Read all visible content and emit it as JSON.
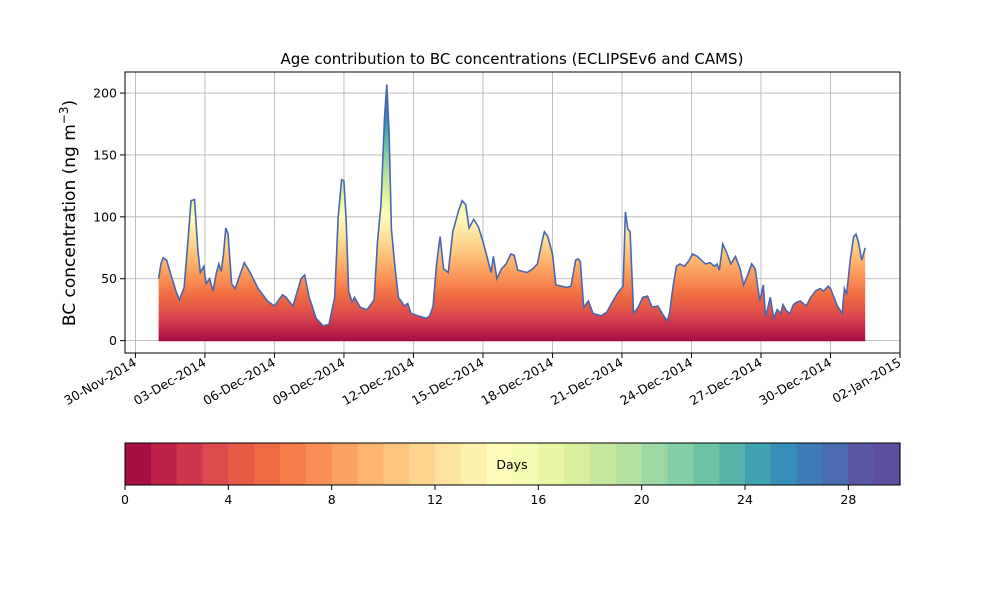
{
  "chart_data": {
    "type": "area",
    "title": "Age contribution to BC concentrations (ECLIPSEv6 and CAMS)",
    "ylabel": "BC concentration (ng m",
    "ylabel_exponent": "−3",
    "ylabel_close": ")",
    "xlabel": "",
    "xlim_days_from_nov30": [
      -0.45,
      33.0
    ],
    "ylim": [
      -10,
      217
    ],
    "yticks": [
      0,
      50,
      100,
      150,
      200
    ],
    "xticks": [
      {
        "day": 0,
        "label": "30-Nov-2014"
      },
      {
        "day": 3,
        "label": "03-Dec-2014"
      },
      {
        "day": 6,
        "label": "06-Dec-2014"
      },
      {
        "day": 9,
        "label": "09-Dec-2014"
      },
      {
        "day": 12,
        "label": "12-Dec-2014"
      },
      {
        "day": 15,
        "label": "15-Dec-2014"
      },
      {
        "day": 18,
        "label": "18-Dec-2014"
      },
      {
        "day": 21,
        "label": "21-Dec-2014"
      },
      {
        "day": 24,
        "label": "24-Dec-2014"
      },
      {
        "day": 27,
        "label": "27-Dec-2014"
      },
      {
        "day": 30,
        "label": "30-Dec-2014"
      },
      {
        "day": 33,
        "label": "02-Jan-2015"
      }
    ],
    "grid": true,
    "series_note": "stacked contributions by age (days 0-30)",
    "total_concentration": [
      [
        1.0,
        50
      ],
      [
        1.1,
        62
      ],
      [
        1.2,
        67
      ],
      [
        1.35,
        65
      ],
      [
        1.5,
        55
      ],
      [
        1.75,
        40
      ],
      [
        1.9,
        33
      ],
      [
        2.1,
        43
      ],
      [
        2.3,
        88
      ],
      [
        2.4,
        113
      ],
      [
        2.55,
        114
      ],
      [
        2.7,
        72
      ],
      [
        2.8,
        55
      ],
      [
        2.95,
        60
      ],
      [
        3.05,
        46
      ],
      [
        3.2,
        50
      ],
      [
        3.35,
        40
      ],
      [
        3.5,
        55
      ],
      [
        3.6,
        62
      ],
      [
        3.7,
        56
      ],
      [
        3.8,
        70
      ],
      [
        3.9,
        91
      ],
      [
        4.0,
        86
      ],
      [
        4.15,
        46
      ],
      [
        4.3,
        42
      ],
      [
        4.55,
        55
      ],
      [
        4.7,
        63
      ],
      [
        4.95,
        55
      ],
      [
        5.3,
        42
      ],
      [
        5.7,
        32
      ],
      [
        6.0,
        28
      ],
      [
        6.35,
        37
      ],
      [
        6.5,
        35
      ],
      [
        6.8,
        28
      ],
      [
        7.15,
        50
      ],
      [
        7.3,
        53
      ],
      [
        7.5,
        35
      ],
      [
        7.8,
        18
      ],
      [
        8.1,
        12
      ],
      [
        8.35,
        13
      ],
      [
        8.6,
        35
      ],
      [
        8.75,
        100
      ],
      [
        8.9,
        130
      ],
      [
        9.0,
        129
      ],
      [
        9.1,
        95
      ],
      [
        9.2,
        40
      ],
      [
        9.35,
        31
      ],
      [
        9.45,
        35
      ],
      [
        9.7,
        27
      ],
      [
        10.0,
        25
      ],
      [
        10.3,
        33
      ],
      [
        10.45,
        80
      ],
      [
        10.6,
        110
      ],
      [
        10.75,
        180
      ],
      [
        10.85,
        207
      ],
      [
        10.95,
        168
      ],
      [
        11.05,
        90
      ],
      [
        11.2,
        60
      ],
      [
        11.35,
        35
      ],
      [
        11.5,
        31
      ],
      [
        11.6,
        28
      ],
      [
        11.75,
        30
      ],
      [
        11.9,
        22
      ],
      [
        12.2,
        20
      ],
      [
        12.55,
        18
      ],
      [
        12.7,
        20
      ],
      [
        12.85,
        28
      ],
      [
        13.0,
        62
      ],
      [
        13.15,
        84
      ],
      [
        13.3,
        58
      ],
      [
        13.5,
        55
      ],
      [
        13.7,
        88
      ],
      [
        13.95,
        105
      ],
      [
        14.1,
        113
      ],
      [
        14.25,
        110
      ],
      [
        14.4,
        91
      ],
      [
        14.6,
        98
      ],
      [
        14.8,
        92
      ],
      [
        15.0,
        80
      ],
      [
        15.2,
        66
      ],
      [
        15.35,
        55
      ],
      [
        15.45,
        68
      ],
      [
        15.6,
        50
      ],
      [
        15.8,
        58
      ],
      [
        16.0,
        62
      ],
      [
        16.2,
        70
      ],
      [
        16.35,
        69
      ],
      [
        16.5,
        57
      ],
      [
        16.9,
        55
      ],
      [
        17.15,
        58
      ],
      [
        17.35,
        62
      ],
      [
        17.55,
        80
      ],
      [
        17.65,
        88
      ],
      [
        17.8,
        84
      ],
      [
        18.0,
        70
      ],
      [
        18.15,
        45
      ],
      [
        18.6,
        43
      ],
      [
        18.8,
        44
      ],
      [
        19.0,
        65
      ],
      [
        19.1,
        66
      ],
      [
        19.2,
        64
      ],
      [
        19.35,
        27
      ],
      [
        19.55,
        32
      ],
      [
        19.75,
        22
      ],
      [
        20.1,
        20
      ],
      [
        20.35,
        23
      ],
      [
        20.55,
        30
      ],
      [
        20.8,
        38
      ],
      [
        21.05,
        44
      ],
      [
        21.15,
        104
      ],
      [
        21.25,
        90
      ],
      [
        21.35,
        88
      ],
      [
        21.5,
        22
      ],
      [
        21.7,
        27
      ],
      [
        21.9,
        35
      ],
      [
        22.1,
        36
      ],
      [
        22.3,
        27
      ],
      [
        22.55,
        28
      ],
      [
        22.8,
        20
      ],
      [
        22.95,
        16
      ],
      [
        23.05,
        22
      ],
      [
        23.2,
        43
      ],
      [
        23.35,
        60
      ],
      [
        23.5,
        62
      ],
      [
        23.7,
        60
      ],
      [
        23.9,
        65
      ],
      [
        24.05,
        70
      ],
      [
        24.25,
        68
      ],
      [
        24.6,
        62
      ],
      [
        24.8,
        63
      ],
      [
        25.0,
        60
      ],
      [
        25.1,
        62
      ],
      [
        25.2,
        57
      ],
      [
        25.35,
        78
      ],
      [
        25.5,
        72
      ],
      [
        25.7,
        62
      ],
      [
        25.9,
        68
      ],
      [
        26.1,
        58
      ],
      [
        26.25,
        45
      ],
      [
        26.45,
        54
      ],
      [
        26.6,
        62
      ],
      [
        26.75,
        58
      ],
      [
        26.95,
        32
      ],
      [
        27.1,
        45
      ],
      [
        27.2,
        19
      ],
      [
        27.4,
        35
      ],
      [
        27.55,
        18
      ],
      [
        27.7,
        25
      ],
      [
        27.85,
        22
      ],
      [
        27.95,
        29
      ],
      [
        28.1,
        24
      ],
      [
        28.25,
        22
      ],
      [
        28.4,
        29
      ],
      [
        28.55,
        31
      ],
      [
        28.7,
        32
      ],
      [
        28.95,
        28
      ],
      [
        29.15,
        35
      ],
      [
        29.35,
        40
      ],
      [
        29.55,
        42
      ],
      [
        29.7,
        40
      ],
      [
        29.9,
        44
      ],
      [
        30.0,
        42
      ],
      [
        30.3,
        28
      ],
      [
        30.5,
        22
      ],
      [
        30.6,
        42
      ],
      [
        30.7,
        38
      ],
      [
        30.85,
        65
      ],
      [
        31.0,
        84
      ],
      [
        31.1,
        86
      ],
      [
        31.2,
        80
      ],
      [
        31.35,
        65
      ],
      [
        31.5,
        75
      ]
    ],
    "colorbar": {
      "label": "Days",
      "min": 0,
      "max": 30,
      "levels": 30,
      "ticks": [
        0,
        4,
        8,
        12,
        16,
        20,
        24,
        28
      ],
      "colors": [
        "#a50f44",
        "#bc2148",
        "#ce374b",
        "#dc4b4d",
        "#e75c47",
        "#ef6b43",
        "#f67d4a",
        "#f98f56",
        "#fba262",
        "#fdb56f",
        "#fdc57e",
        "#fdd58e",
        "#fee3a0",
        "#feefaf",
        "#fefbbd",
        "#f4fab2",
        "#e8f5a3",
        "#d9ef9e",
        "#c6e89f",
        "#b2e1a1",
        "#9dd8a4",
        "#84cfa5",
        "#6cc4a5",
        "#56b5a8",
        "#43a2b1",
        "#3790b9",
        "#3f7cb7",
        "#4b6bb0",
        "#5a58a6",
        "#5e4fa2"
      ]
    }
  }
}
